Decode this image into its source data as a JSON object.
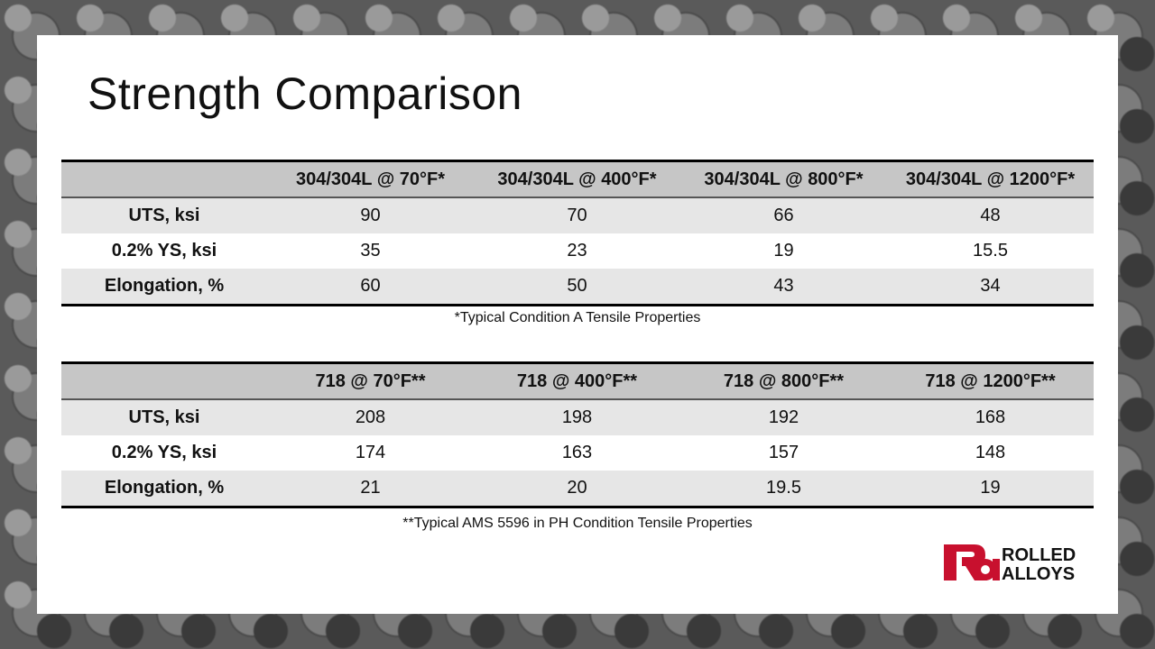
{
  "slide": {
    "title": "Strength Comparison"
  },
  "table1": {
    "headers": [
      "",
      "304/304L @ 70°F*",
      "304/304L @ 400°F*",
      "304/304L @ 800°F*",
      "304/304L @ 1200°F*"
    ],
    "rows": [
      {
        "label": "UTS, ksi",
        "values": [
          "90",
          "70",
          "66",
          "48"
        ]
      },
      {
        "label": "0.2% YS, ksi",
        "values": [
          "35",
          "23",
          "19",
          "15.5"
        ]
      },
      {
        "label": "Elongation, %",
        "values": [
          "60",
          "50",
          "43",
          "34"
        ]
      }
    ],
    "note": "*Typical Condition A Tensile Properties"
  },
  "table2": {
    "headers": [
      "",
      "718 @ 70°F**",
      "718 @ 400°F**",
      "718 @ 800°F**",
      "718 @ 1200°F**"
    ],
    "rows": [
      {
        "label": "UTS, ksi",
        "values": [
          "208",
          "198",
          "192",
          "168"
        ]
      },
      {
        "label": "0.2% YS, ksi",
        "values": [
          "174",
          "163",
          "157",
          "148"
        ]
      },
      {
        "label": "Elongation, %",
        "values": [
          "21",
          "20",
          "19.5",
          "19"
        ]
      }
    ],
    "note": "**Typical AMS 5596 in PH Condition Tensile Properties"
  },
  "logo": {
    "line1": "ROLLED",
    "line2": "ALLOYS",
    "mark": "ra",
    "color": "#c8102e"
  }
}
